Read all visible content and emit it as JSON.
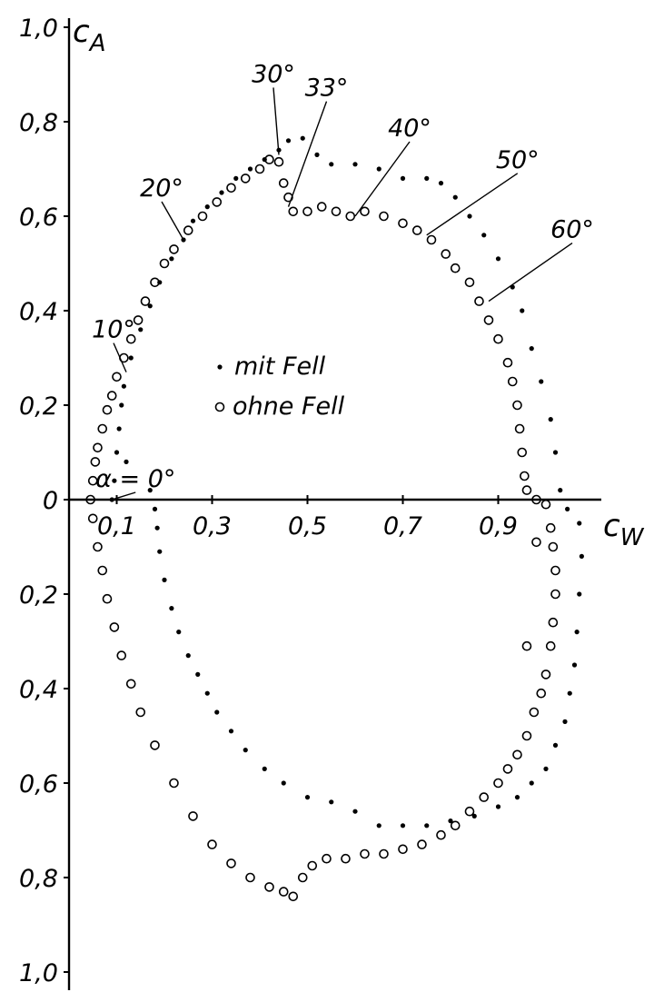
{
  "chart_data": {
    "type": "scatter",
    "title": "",
    "xlabel": "c_W",
    "ylabel": "c_A",
    "xlim": [
      0,
      1.1
    ],
    "ylim": [
      -1.0,
      1.0
    ],
    "x_tick_labels": [
      {
        "value": 0.1,
        "label": "0,1"
      },
      {
        "value": 0.3,
        "label": "0,3"
      },
      {
        "value": 0.5,
        "label": "0,5"
      },
      {
        "value": 0.7,
        "label": "0,7"
      },
      {
        "value": 0.9,
        "label": "0,9"
      }
    ],
    "y_tick_labels": [
      {
        "value": 1.0,
        "label": "1,0"
      },
      {
        "value": 0.8,
        "label": "0,8"
      },
      {
        "value": 0.6,
        "label": "0,6"
      },
      {
        "value": 0.4,
        "label": "0,4"
      },
      {
        "value": 0.2,
        "label": "0,2"
      },
      {
        "value": 0,
        "label": "0"
      },
      {
        "value": -0.2,
        "label": "0,2"
      },
      {
        "value": -0.4,
        "label": "0,4"
      },
      {
        "value": -0.6,
        "label": "0,6"
      },
      {
        "value": -0.8,
        "label": "0,8"
      },
      {
        "value": -1.0,
        "label": "1,0"
      }
    ],
    "legend": [
      {
        "marker": "dot",
        "label": "mit Fell"
      },
      {
        "marker": "circle",
        "label": "ohne Fell"
      }
    ],
    "annotations": [
      {
        "label": "α = 0°",
        "x": 0.09,
        "y": 0.0
      },
      {
        "label": "10°",
        "x": 0.12,
        "y": 0.27
      },
      {
        "label": "20°",
        "x": 0.24,
        "y": 0.55
      },
      {
        "label": "30°",
        "x": 0.44,
        "y": 0.73
      },
      {
        "label": "33°",
        "x": 0.46,
        "y": 0.62
      },
      {
        "label": "40°",
        "x": 0.6,
        "y": 0.6
      },
      {
        "label": "50°",
        "x": 0.75,
        "y": 0.56
      },
      {
        "label": "60°",
        "x": 0.88,
        "y": 0.42
      }
    ],
    "series": [
      {
        "name": "mit Fell",
        "marker": "dot",
        "points": [
          [
            0.09,
            0.0
          ],
          [
            0.095,
            0.04
          ],
          [
            0.1,
            0.1
          ],
          [
            0.105,
            0.15
          ],
          [
            0.11,
            0.2
          ],
          [
            0.115,
            0.24
          ],
          [
            0.13,
            0.3
          ],
          [
            0.15,
            0.36
          ],
          [
            0.17,
            0.41
          ],
          [
            0.19,
            0.46
          ],
          [
            0.215,
            0.51
          ],
          [
            0.24,
            0.55
          ],
          [
            0.26,
            0.59
          ],
          [
            0.29,
            0.62
          ],
          [
            0.32,
            0.65
          ],
          [
            0.35,
            0.68
          ],
          [
            0.38,
            0.7
          ],
          [
            0.41,
            0.72
          ],
          [
            0.44,
            0.74
          ],
          [
            0.46,
            0.76
          ],
          [
            0.49,
            0.765
          ],
          [
            0.52,
            0.73
          ],
          [
            0.55,
            0.71
          ],
          [
            0.6,
            0.71
          ],
          [
            0.65,
            0.7
          ],
          [
            0.7,
            0.68
          ],
          [
            0.75,
            0.68
          ],
          [
            0.78,
            0.67
          ],
          [
            0.81,
            0.64
          ],
          [
            0.84,
            0.6
          ],
          [
            0.87,
            0.56
          ],
          [
            0.9,
            0.51
          ],
          [
            0.93,
            0.45
          ],
          [
            0.95,
            0.4
          ],
          [
            0.97,
            0.32
          ],
          [
            0.99,
            0.25
          ],
          [
            1.01,
            0.17
          ],
          [
            1.02,
            0.1
          ],
          [
            1.03,
            0.02
          ],
          [
            1.045,
            -0.02
          ],
          [
            1.07,
            -0.05
          ],
          [
            1.075,
            -0.12
          ],
          [
            1.07,
            -0.2
          ],
          [
            1.065,
            -0.28
          ],
          [
            1.06,
            -0.35
          ],
          [
            1.05,
            -0.41
          ],
          [
            1.04,
            -0.47
          ],
          [
            1.02,
            -0.52
          ],
          [
            1.0,
            -0.57
          ],
          [
            0.97,
            -0.6
          ],
          [
            0.94,
            -0.63
          ],
          [
            0.9,
            -0.65
          ],
          [
            0.85,
            -0.67
          ],
          [
            0.8,
            -0.68
          ],
          [
            0.75,
            -0.69
          ],
          [
            0.7,
            -0.69
          ],
          [
            0.65,
            -0.69
          ],
          [
            0.6,
            -0.66
          ],
          [
            0.55,
            -0.64
          ],
          [
            0.5,
            -0.63
          ],
          [
            0.45,
            -0.6
          ],
          [
            0.41,
            -0.57
          ],
          [
            0.37,
            -0.53
          ],
          [
            0.34,
            -0.49
          ],
          [
            0.31,
            -0.45
          ],
          [
            0.29,
            -0.41
          ],
          [
            0.27,
            -0.37
          ],
          [
            0.25,
            -0.33
          ],
          [
            0.23,
            -0.28
          ],
          [
            0.215,
            -0.23
          ],
          [
            0.2,
            -0.17
          ],
          [
            0.19,
            -0.11
          ],
          [
            0.185,
            -0.06
          ],
          [
            0.18,
            -0.02
          ],
          [
            0.17,
            0.02
          ],
          [
            0.12,
            0.08
          ]
        ]
      },
      {
        "name": "ohne Fell",
        "marker": "circle",
        "points": [
          [
            0.045,
            0.0
          ],
          [
            0.05,
            0.04
          ],
          [
            0.055,
            0.08
          ],
          [
            0.06,
            0.11
          ],
          [
            0.07,
            0.15
          ],
          [
            0.08,
            0.19
          ],
          [
            0.09,
            0.22
          ],
          [
            0.1,
            0.26
          ],
          [
            0.115,
            0.3
          ],
          [
            0.13,
            0.34
          ],
          [
            0.145,
            0.38
          ],
          [
            0.16,
            0.42
          ],
          [
            0.18,
            0.46
          ],
          [
            0.2,
            0.5
          ],
          [
            0.22,
            0.53
          ],
          [
            0.25,
            0.57
          ],
          [
            0.28,
            0.6
          ],
          [
            0.31,
            0.63
          ],
          [
            0.34,
            0.66
          ],
          [
            0.37,
            0.68
          ],
          [
            0.4,
            0.7
          ],
          [
            0.42,
            0.72
          ],
          [
            0.44,
            0.715
          ],
          [
            0.45,
            0.67
          ],
          [
            0.46,
            0.64
          ],
          [
            0.47,
            0.61
          ],
          [
            0.5,
            0.61
          ],
          [
            0.53,
            0.62
          ],
          [
            0.56,
            0.61
          ],
          [
            0.59,
            0.6
          ],
          [
            0.62,
            0.61
          ],
          [
            0.66,
            0.6
          ],
          [
            0.7,
            0.585
          ],
          [
            0.73,
            0.57
          ],
          [
            0.76,
            0.55
          ],
          [
            0.79,
            0.52
          ],
          [
            0.81,
            0.49
          ],
          [
            0.84,
            0.46
          ],
          [
            0.86,
            0.42
          ],
          [
            0.88,
            0.38
          ],
          [
            0.9,
            0.34
          ],
          [
            0.92,
            0.29
          ],
          [
            0.93,
            0.25
          ],
          [
            0.94,
            0.2
          ],
          [
            0.945,
            0.15
          ],
          [
            0.95,
            0.1
          ],
          [
            0.955,
            0.05
          ],
          [
            0.96,
            0.02
          ],
          [
            0.98,
            0.0
          ],
          [
            1.0,
            -0.01
          ],
          [
            1.01,
            -0.06
          ],
          [
            1.015,
            -0.1
          ],
          [
            1.02,
            -0.15
          ],
          [
            1.02,
            -0.2
          ],
          [
            1.015,
            -0.26
          ],
          [
            1.01,
            -0.31
          ],
          [
            1.0,
            -0.37
          ],
          [
            0.99,
            -0.41
          ],
          [
            0.975,
            -0.45
          ],
          [
            0.96,
            -0.5
          ],
          [
            0.94,
            -0.54
          ],
          [
            0.92,
            -0.57
          ],
          [
            0.9,
            -0.6
          ],
          [
            0.87,
            -0.63
          ],
          [
            0.84,
            -0.66
          ],
          [
            0.81,
            -0.69
          ],
          [
            0.78,
            -0.71
          ],
          [
            0.74,
            -0.73
          ],
          [
            0.7,
            -0.74
          ],
          [
            0.66,
            -0.75
          ],
          [
            0.62,
            -0.75
          ],
          [
            0.58,
            -0.76
          ],
          [
            0.54,
            -0.76
          ],
          [
            0.51,
            -0.775
          ],
          [
            0.49,
            -0.8
          ],
          [
            0.47,
            -0.84
          ],
          [
            0.45,
            -0.83
          ],
          [
            0.42,
            -0.82
          ],
          [
            0.38,
            -0.8
          ],
          [
            0.34,
            -0.77
          ],
          [
            0.3,
            -0.73
          ],
          [
            0.26,
            -0.67
          ],
          [
            0.22,
            -0.6
          ],
          [
            0.18,
            -0.52
          ],
          [
            0.15,
            -0.45
          ],
          [
            0.13,
            -0.39
          ],
          [
            0.11,
            -0.33
          ],
          [
            0.095,
            -0.27
          ],
          [
            0.08,
            -0.21
          ],
          [
            0.07,
            -0.15
          ],
          [
            0.06,
            -0.1
          ],
          [
            0.05,
            -0.04
          ],
          [
            0.96,
            -0.31
          ],
          [
            0.98,
            -0.09
          ]
        ]
      }
    ]
  }
}
